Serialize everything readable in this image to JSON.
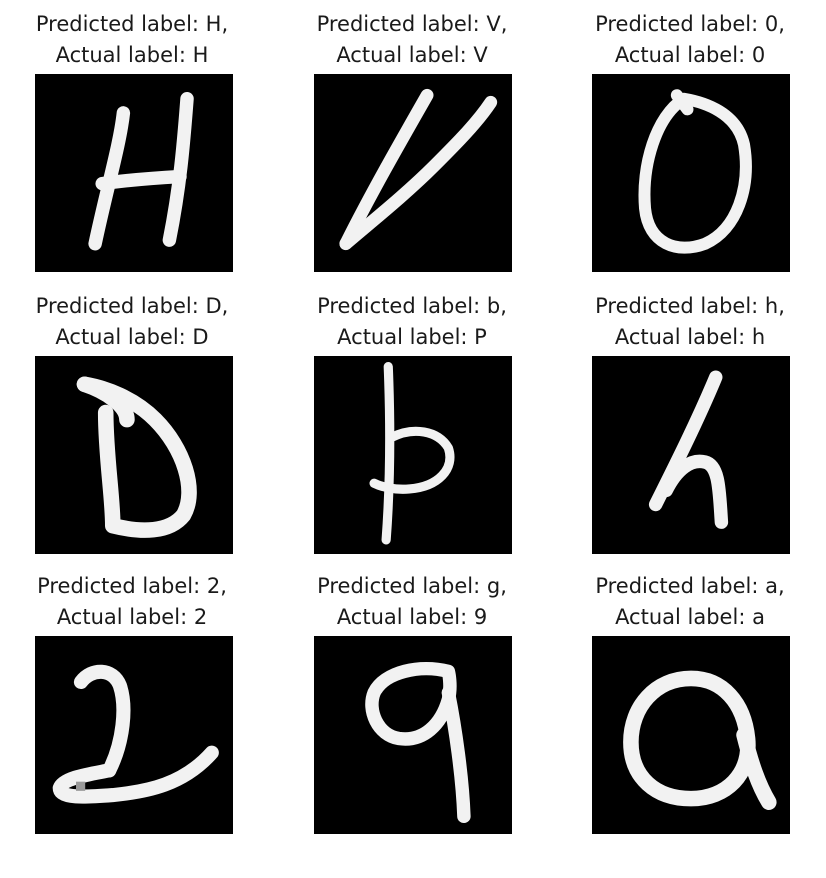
{
  "panels": [
    {
      "predicted_line": "Predicted label: H,",
      "actual_line": "Actual label: H",
      "glyph": "H",
      "predicted": "H",
      "actual": "H"
    },
    {
      "predicted_line": "Predicted label: V,",
      "actual_line": "Actual label: V",
      "glyph": "V",
      "predicted": "V",
      "actual": "V"
    },
    {
      "predicted_line": "Predicted label: 0,",
      "actual_line": "Actual label: 0",
      "glyph": "0",
      "predicted": "0",
      "actual": "0"
    },
    {
      "predicted_line": "Predicted label: D,",
      "actual_line": "Actual label: D",
      "glyph": "D",
      "predicted": "D",
      "actual": "D"
    },
    {
      "predicted_line": "Predicted label: b,",
      "actual_line": "Actual label: P",
      "glyph": "P",
      "predicted": "b",
      "actual": "P"
    },
    {
      "predicted_line": "Predicted label: h,",
      "actual_line": "Actual label: h",
      "glyph": "h",
      "predicted": "h",
      "actual": "h"
    },
    {
      "predicted_line": "Predicted label: 2,",
      "actual_line": "Actual label: 2",
      "glyph": "2",
      "predicted": "2",
      "actual": "2"
    },
    {
      "predicted_line": "Predicted label: g,",
      "actual_line": "Actual label: 9",
      "glyph": "9",
      "predicted": "g",
      "actual": "9"
    },
    {
      "predicted_line": "Predicted label: a,",
      "actual_line": "Actual label: a",
      "glyph": "a",
      "predicted": "a",
      "actual": "a"
    }
  ],
  "colors": {
    "image_background": "#000000",
    "stroke": "#f2f2f2",
    "title_text": "#1a1a1a"
  }
}
